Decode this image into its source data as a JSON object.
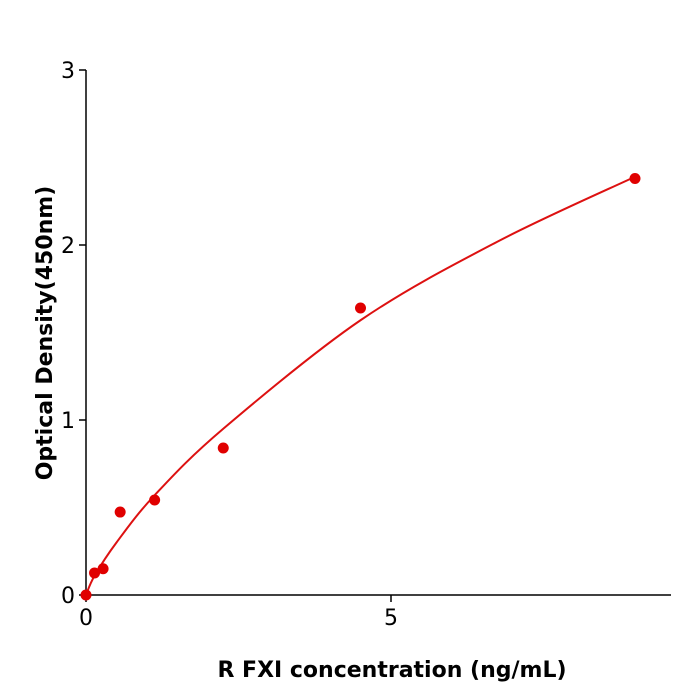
{
  "chart_data": {
    "type": "scatter",
    "title": "",
    "xlabel": "R  FXI concentration (ng/mL)",
    "ylabel": "Optical Density(450nm)",
    "xlim": [
      0,
      9.6
    ],
    "ylim": [
      0,
      3
    ],
    "xticks": [
      "0",
      "5"
    ],
    "yticks": [
      "0",
      "1",
      "2",
      "3"
    ],
    "grid": false,
    "color": "#e00000",
    "points": [
      {
        "x": 0,
        "y": 0
      },
      {
        "x": 0.14,
        "y": 0.126
      },
      {
        "x": 0.28,
        "y": 0.15
      },
      {
        "x": 0.56,
        "y": 0.474
      },
      {
        "x": 1.125,
        "y": 0.543
      },
      {
        "x": 2.25,
        "y": 0.84
      },
      {
        "x": 4.5,
        "y": 1.64
      },
      {
        "x": 9,
        "y": 2.38
      }
    ],
    "fit_curve": [
      [
        0,
        0
      ],
      [
        0.14,
        0.11
      ],
      [
        0.5,
        0.3
      ],
      [
        1.125,
        0.57
      ],
      [
        2.25,
        0.95
      ],
      [
        4.5,
        1.57
      ],
      [
        6.75,
        2.02
      ],
      [
        9,
        2.39
      ]
    ]
  }
}
